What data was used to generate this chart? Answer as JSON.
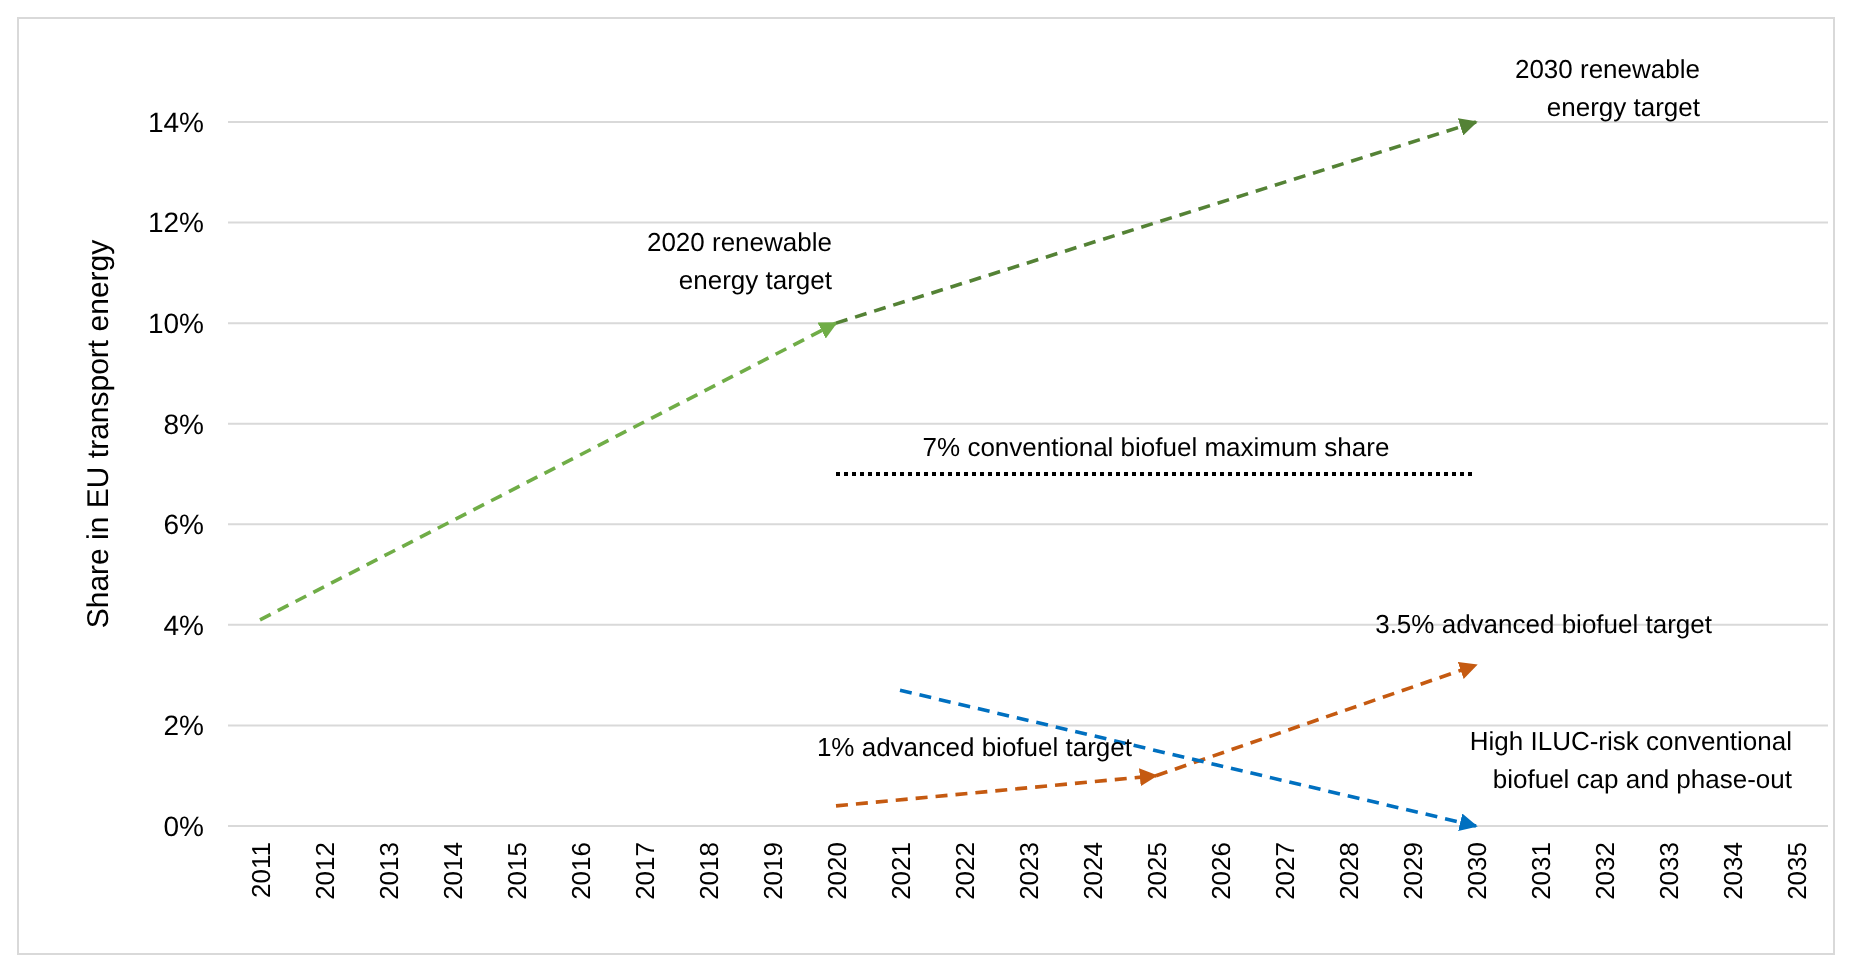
{
  "chart_data": {
    "type": "line",
    "ylabel": "Share in EU transport energy",
    "categories": [
      "2011",
      "2012",
      "2013",
      "2014",
      "2015",
      "2016",
      "2017",
      "2018",
      "2019",
      "2020",
      "2021",
      "2022",
      "2023",
      "2024",
      "2025",
      "2026",
      "2027",
      "2028",
      "2029",
      "2030",
      "2031",
      "2032",
      "2033",
      "2034",
      "2035"
    ],
    "series": [
      {
        "color": "#70ad47",
        "line_style": "dashed",
        "values": [
          4.1,
          null,
          null,
          null,
          null,
          null,
          null,
          null,
          null,
          10,
          null,
          null,
          null,
          null,
          null,
          null,
          null,
          null,
          null,
          null,
          null,
          null,
          null,
          null,
          null
        ]
      },
      {
        "color": "#548235",
        "line_style": "dashed",
        "values": [
          null,
          null,
          null,
          null,
          null,
          null,
          null,
          null,
          null,
          10,
          null,
          null,
          null,
          null,
          null,
          null,
          null,
          null,
          null,
          14,
          null,
          null,
          null,
          null,
          null
        ]
      },
      {
        "color": "#000000",
        "line_style": "dotted",
        "values": [
          null,
          null,
          null,
          null,
          null,
          null,
          null,
          null,
          null,
          7,
          null,
          null,
          null,
          null,
          null,
          null,
          null,
          null,
          null,
          7,
          null,
          null,
          null,
          null,
          null
        ]
      },
      {
        "color": "#c55a11",
        "line_style": "dashed",
        "values": [
          null,
          null,
          null,
          null,
          null,
          null,
          null,
          null,
          null,
          0.4,
          null,
          null,
          null,
          null,
          1,
          null,
          null,
          null,
          null,
          null,
          null,
          null,
          null,
          null,
          null
        ]
      },
      {
        "color": "#c55a11",
        "line_style": "dashed",
        "values": [
          null,
          null,
          null,
          null,
          null,
          null,
          null,
          null,
          null,
          null,
          null,
          null,
          null,
          null,
          1,
          null,
          null,
          null,
          null,
          3.2,
          null,
          null,
          null,
          null,
          null
        ]
      },
      {
        "color": "#0070c0",
        "line_style": "dashed",
        "values": [
          null,
          null,
          null,
          null,
          null,
          null,
          null,
          null,
          null,
          null,
          2.7,
          null,
          null,
          null,
          null,
          null,
          null,
          null,
          null,
          0,
          null,
          null,
          null,
          null,
          null
        ]
      }
    ],
    "ylim": [
      0,
      14
    ],
    "yticks": [
      {
        "value": 0,
        "label": "0%"
      },
      {
        "value": 2,
        "label": "2%"
      },
      {
        "value": 4,
        "label": "4%"
      },
      {
        "value": 6,
        "label": "6%"
      },
      {
        "value": 8,
        "label": "8%"
      },
      {
        "value": 10,
        "label": "10%"
      },
      {
        "value": 12,
        "label": "12%"
      },
      {
        "value": 14,
        "label": "14%"
      }
    ],
    "grid": "y",
    "annotations": [
      {
        "text": "2020 renewable\nenergy target",
        "x": "2020",
        "y": 10
      },
      {
        "text": "2030 renewable\nenergy target",
        "x": "2030",
        "y": 14
      },
      {
        "text": "7% conventional biofuel maximum share",
        "x": "2025",
        "y": 7
      },
      {
        "text": "1% advanced biofuel target",
        "x": "2025",
        "y": 1
      },
      {
        "text": "3.5% advanced biofuel target",
        "x": "2030",
        "y": 3.2
      },
      {
        "text": "High ILUC-risk conventional\nbiofuel cap and phase-out",
        "x": "2030",
        "y": 0
      }
    ]
  }
}
